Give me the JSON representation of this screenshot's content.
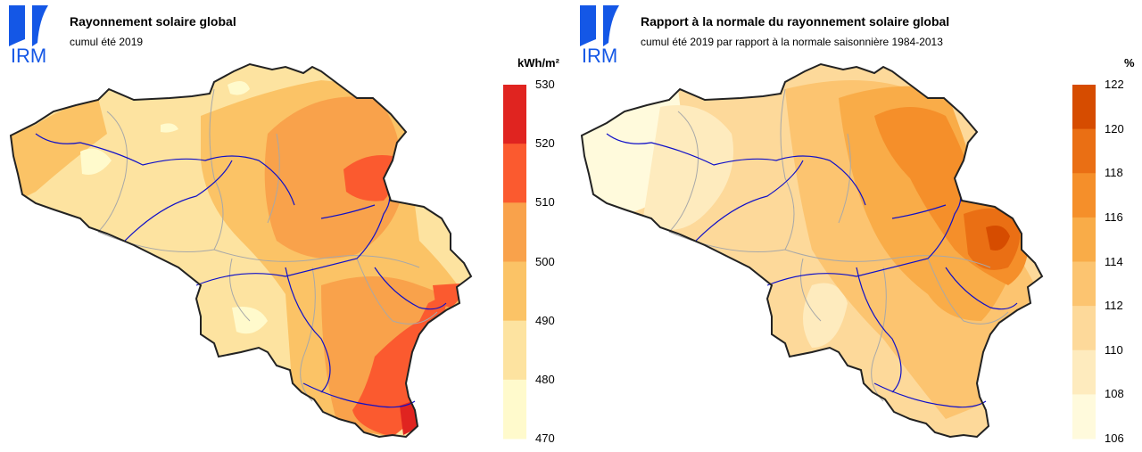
{
  "logo_text": "IRM",
  "colors": {
    "logo_blue": "#1457e6",
    "river": "#1010c8",
    "province_border": "#a8a8a8",
    "country_border": "#222222"
  },
  "panels": [
    {
      "title": "Rayonnement solaire global",
      "subtitle": "cumul été 2019",
      "legend": {
        "unit": "kWh/m²",
        "ticks": [
          "530",
          "520",
          "510",
          "500",
          "490",
          "480",
          "470"
        ],
        "bins": [
          {
            "min": 520,
            "max": 530,
            "color": "#e02420"
          },
          {
            "min": 510,
            "max": 520,
            "color": "#fb5a2f"
          },
          {
            "min": 500,
            "max": 510,
            "color": "#f9a24b"
          },
          {
            "min": 490,
            "max": 500,
            "color": "#fbc366"
          },
          {
            "min": 480,
            "max": 490,
            "color": "#fde3a0"
          },
          {
            "min": 470,
            "max": 480,
            "color": "#fffacc"
          }
        ]
      }
    },
    {
      "title": "Rapport à la normale du rayonnement solaire global",
      "subtitle": "cumul été 2019 par rapport à la normale saisonnière 1984-2013",
      "legend": {
        "unit": "%",
        "ticks": [
          "122",
          "120",
          "118",
          "116",
          "114",
          "112",
          "110",
          "108",
          "106"
        ],
        "bins": [
          {
            "min": 120,
            "max": 122,
            "color": "#d64c00"
          },
          {
            "min": 118,
            "max": 120,
            "color": "#ea6f14"
          },
          {
            "min": 116,
            "max": 118,
            "color": "#f58f2a"
          },
          {
            "min": 114,
            "max": 116,
            "color": "#f9ac48"
          },
          {
            "min": 112,
            "max": 114,
            "color": "#fcc470"
          },
          {
            "min": 110,
            "max": 112,
            "color": "#fdd99a"
          },
          {
            "min": 108,
            "max": 110,
            "color": "#feebbe"
          },
          {
            "min": 106,
            "max": 108,
            "color": "#fffadc"
          }
        ]
      }
    }
  ]
}
